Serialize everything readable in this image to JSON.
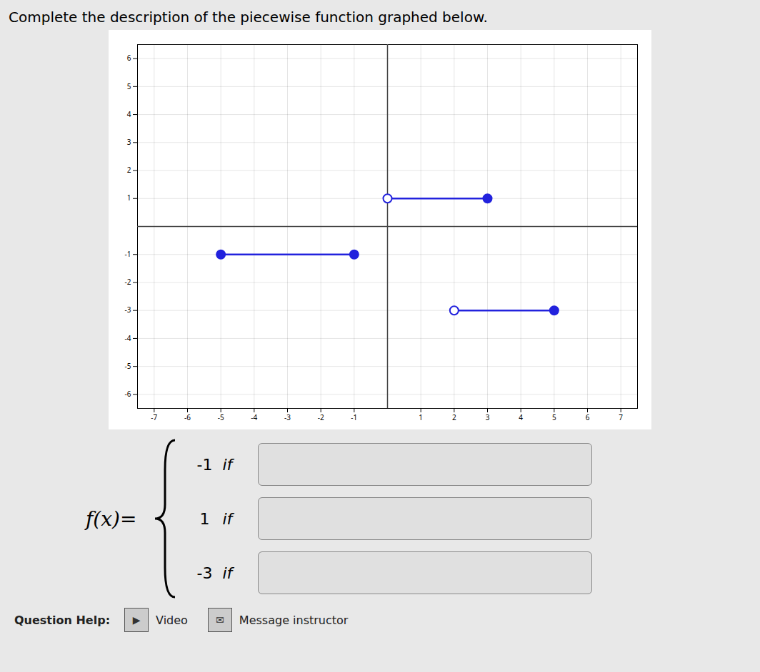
{
  "chart_data": {
    "type": "segments",
    "title": "Complete the description of the piecewise function graphed below.",
    "xlim": [
      -7.5,
      7.5
    ],
    "ylim": [
      -6.5,
      6.5
    ],
    "xticks": [
      -7,
      -6,
      -5,
      -4,
      -3,
      -2,
      -1,
      1,
      2,
      3,
      4,
      5,
      6,
      7
    ],
    "yticks": [
      -6,
      -5,
      -4,
      -3,
      -2,
      -1,
      1,
      2,
      3,
      4,
      5,
      6
    ],
    "grid": true,
    "color": "#2222dd",
    "segments": [
      {
        "x_start": -5,
        "x_end": -1,
        "y": -1,
        "left_closed": true,
        "right_closed": true
      },
      {
        "x_start": 0,
        "x_end": 3,
        "y": 1,
        "left_closed": false,
        "right_closed": true
      },
      {
        "x_start": 2,
        "x_end": 5,
        "y": -3,
        "left_closed": false,
        "right_closed": true
      }
    ],
    "formula_label": "f(x)=",
    "pieces": [
      {
        "value": "-1",
        "label": "if"
      },
      {
        "value": "1",
        "label": "if"
      },
      {
        "value": "-3",
        "label": "if"
      }
    ],
    "footer_text": "Question Help:",
    "footer_items": [
      {
        "icon": "▶",
        "label": "Video"
      },
      {
        "icon": "✉",
        "label": "Message instructor"
      }
    ]
  }
}
